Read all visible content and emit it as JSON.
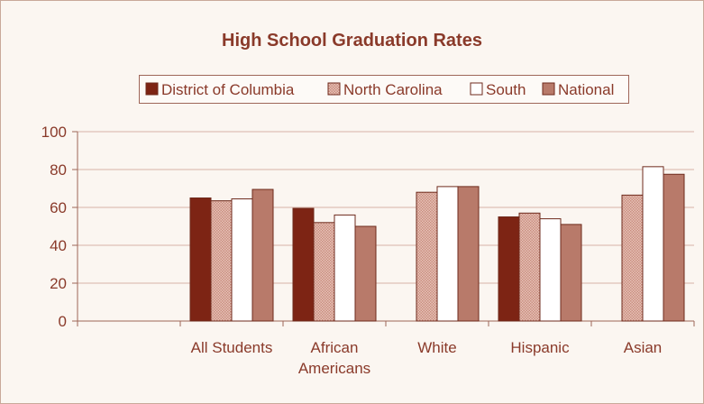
{
  "chart_data": {
    "type": "bar",
    "title": "High School Graduation Rates",
    "categories": [
      [
        "All Students"
      ],
      [
        "African",
        "Americans"
      ],
      [
        "White"
      ],
      [
        "Hispanic"
      ],
      [
        "Asian"
      ]
    ],
    "series": [
      {
        "name": "District of Columbia",
        "values": [
          65,
          59.5,
          null,
          55,
          null
        ]
      },
      {
        "name": "North Carolina",
        "values": [
          63.5,
          52,
          68,
          57,
          66.5
        ]
      },
      {
        "name": "South",
        "values": [
          64.5,
          56,
          71,
          54,
          81.5
        ]
      },
      {
        "name": "National",
        "values": [
          69.5,
          50,
          71,
          51,
          77.5
        ]
      }
    ],
    "ylim": [
      0,
      100
    ],
    "yticks": [
      0,
      20,
      40,
      60,
      80,
      100
    ],
    "grid": true,
    "legend": "top"
  },
  "colors": {
    "district_of_columbia": "#7d2414",
    "north_carolina": "#d9a597",
    "south": "#ffffff",
    "national": "#b87a6a",
    "text": "#8a3a2a",
    "axis": "#9e6658"
  }
}
